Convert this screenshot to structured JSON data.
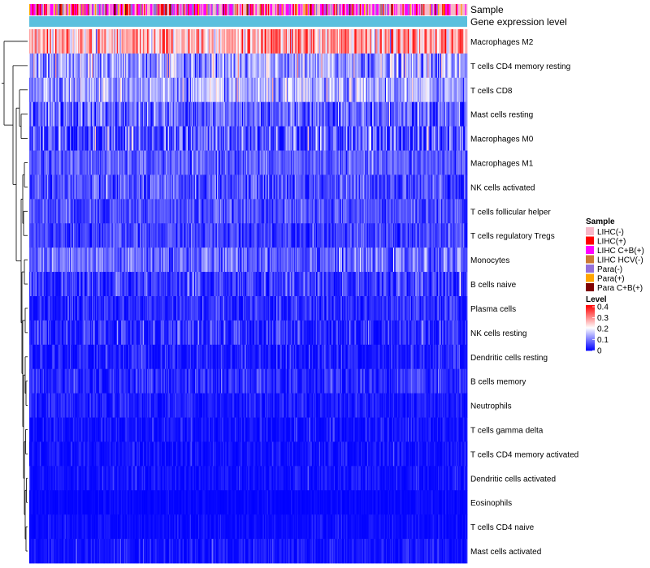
{
  "chart_data": {
    "type": "heatmap",
    "annotations": [
      {
        "name": "Sample",
        "palette": [
          "#f7b8c8",
          "#ff0000",
          "#ff00ff",
          "#cc7a33",
          "#9370db",
          "#ffa500",
          "#7f0000"
        ]
      },
      {
        "name": "Gene expression level",
        "color": "#5bc0de"
      }
    ],
    "rows": [
      {
        "name": "Macrophages M2",
        "mean": 0.27,
        "sd": 0.07
      },
      {
        "name": "T cells CD4 memory resting",
        "mean": 0.12,
        "sd": 0.06
      },
      {
        "name": "T cells CD8",
        "mean": 0.13,
        "sd": 0.05
      },
      {
        "name": "Mast cells resting",
        "mean": 0.08,
        "sd": 0.05
      },
      {
        "name": "Macrophages M0",
        "mean": 0.06,
        "sd": 0.07
      },
      {
        "name": "Macrophages M1",
        "mean": 0.07,
        "sd": 0.03
      },
      {
        "name": "NK cells activated",
        "mean": 0.06,
        "sd": 0.04
      },
      {
        "name": "T cells follicular helper",
        "mean": 0.06,
        "sd": 0.03
      },
      {
        "name": "T cells regulatory  Tregs",
        "mean": 0.05,
        "sd": 0.03
      },
      {
        "name": "Monocytes",
        "mean": 0.08,
        "sd": 0.04
      },
      {
        "name": "B cells naive",
        "mean": 0.04,
        "sd": 0.04
      },
      {
        "name": "Plasma cells",
        "mean": 0.03,
        "sd": 0.03
      },
      {
        "name": "NK cells resting",
        "mean": 0.03,
        "sd": 0.04
      },
      {
        "name": "Dendritic cells resting",
        "mean": 0.02,
        "sd": 0.03
      },
      {
        "name": "B cells memory",
        "mean": 0.03,
        "sd": 0.03
      },
      {
        "name": "Neutrophils",
        "mean": 0.02,
        "sd": 0.02
      },
      {
        "name": "T cells gamma delta",
        "mean": 0.01,
        "sd": 0.025
      },
      {
        "name": "T cells CD4 memory activated",
        "mean": 0.008,
        "sd": 0.02
      },
      {
        "name": "Dendritic cells activated",
        "mean": 0.008,
        "sd": 0.02
      },
      {
        "name": "Eosinophils",
        "mean": 0.003,
        "sd": 0.01
      },
      {
        "name": "T cells CD4 naive",
        "mean": 0.005,
        "sd": 0.015
      },
      {
        "name": "Mast cells activated",
        "mean": 0.01,
        "sd": 0.025
      }
    ],
    "n_samples": 420,
    "legend_sample": {
      "title": "Sample",
      "entries": [
        {
          "label": "LIHC(-)",
          "color": "#f7b8c8"
        },
        {
          "label": "LIHC(+)",
          "color": "#ff0000"
        },
        {
          "label": "LIHC C+B(+)",
          "color": "#ff00ff"
        },
        {
          "label": "LIHC HCV(-)",
          "color": "#cc7a33"
        },
        {
          "label": "Para(-)",
          "color": "#9370db"
        },
        {
          "label": "Para(+)",
          "color": "#ffa500"
        },
        {
          "label": "Para C+B(+)",
          "color": "#7f0000"
        }
      ]
    },
    "legend_level": {
      "title": "Level",
      "min": 0,
      "max": 0.4,
      "ticks": [
        "0.4",
        "0.3",
        "0.2",
        "0.1",
        "0"
      ],
      "colors": [
        "#0000ff",
        "#ffffff",
        "#ff0000"
      ]
    }
  }
}
